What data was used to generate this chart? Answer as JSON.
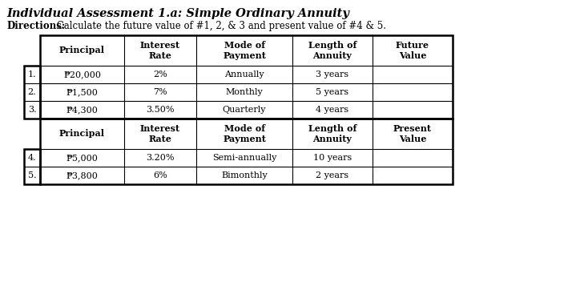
{
  "title": "Individual Assessment 1.a: Simple Ordinary Annuity",
  "directions_bold": "Directions:",
  "directions_text": " Calculate the future value of #1, 2, & 3 and present value of #4 & 5.",
  "bg_color": "#ffffff",
  "table_border_color": "#000000",
  "header1_cols": [
    "Principal",
    "Interest\nRate",
    "Mode of\nPayment",
    "Length of\nAnnuity",
    "Future\nValue"
  ],
  "header2_cols": [
    "Principal",
    "Interest\nRate",
    "Mode of\nPayment",
    "Length of\nAnnuity",
    "Present\nValue"
  ],
  "rows_top": [
    [
      "₱20,000",
      "2%",
      "Annually",
      "3 years",
      ""
    ],
    [
      "₱1,500",
      "7%",
      "Monthly",
      "5 years",
      ""
    ],
    [
      "₱4,300",
      "3.50%",
      "Quarterly",
      "4 years",
      ""
    ]
  ],
  "rows_bottom": [
    [
      "₱5,000",
      "3.20%",
      "Semi-annually",
      "10 years",
      ""
    ],
    [
      "₱3,800",
      "6%",
      "Bimonthly",
      "2 years",
      ""
    ]
  ],
  "row_labels_top": [
    "1.",
    "2.",
    "3."
  ],
  "row_labels_bottom": [
    "4.",
    "5."
  ],
  "font_size_title": 10.5,
  "font_size_header": 8,
  "font_size_cell": 8,
  "font_size_directions": 8.5,
  "font_size_row_label": 8
}
